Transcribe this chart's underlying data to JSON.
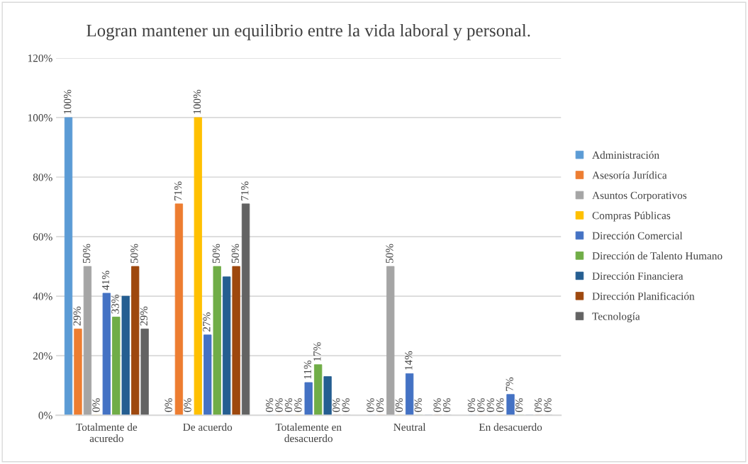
{
  "chart_data": {
    "type": "bar",
    "title": "Logran mantener un equilibrio entre la vida laboral y personal.",
    "categories": [
      "Totalmente de\nacuredo",
      "De acuerdo",
      "Totalemente en\ndesacuerdo",
      "Neutral",
      "En desacuerdo"
    ],
    "series": [
      {
        "name": "Administración",
        "color": "#5b9bd5",
        "values": [
          100,
          0,
          0,
          0,
          0
        ],
        "value_labels": [
          "100%",
          "0%",
          "0%",
          "0%",
          "0%"
        ]
      },
      {
        "name": "Asesoría Jurídica",
        "color": "#ed7d31",
        "values": [
          29,
          71,
          0,
          0,
          0
        ],
        "value_labels": [
          "29%",
          "71%",
          "0%",
          "0%",
          "0%"
        ]
      },
      {
        "name": "Asuntos Corporativos",
        "color": "#a5a5a5",
        "values": [
          50,
          0,
          0,
          50,
          0
        ],
        "value_labels": [
          "50%",
          "0%",
          "0%",
          "50%",
          "0%"
        ]
      },
      {
        "name": "Compras Públicas",
        "color": "#ffc000",
        "values": [
          0,
          100,
          0,
          0,
          0
        ],
        "value_labels": [
          "0%",
          "100%",
          "0%",
          "0%",
          "0%"
        ]
      },
      {
        "name": "Dirección Comercial",
        "color": "#4472c4",
        "values": [
          41,
          27,
          11,
          14,
          7
        ],
        "value_labels": [
          "41%",
          "27%",
          "11%",
          "14%",
          "7%"
        ]
      },
      {
        "name": "Dirección de Talento Humano",
        "color": "#70ad47",
        "values": [
          33,
          50,
          17,
          0,
          0
        ],
        "value_labels": [
          "33%",
          "50%",
          "17%",
          "0%",
          "0%"
        ]
      },
      {
        "name": "Dirección Financiera",
        "color": "#255e91",
        "values": [
          40,
          46.5,
          13,
          0,
          0
        ],
        "value_labels": [
          null,
          null,
          null,
          null,
          null
        ]
      },
      {
        "name": "Dirección Planificación",
        "color": "#9e480e",
        "values": [
          50,
          50,
          0,
          0,
          0
        ],
        "value_labels": [
          "50%",
          "50%",
          "0%",
          "0%",
          "0%"
        ]
      },
      {
        "name": "Tecnología",
        "color": "#636363",
        "values": [
          29,
          71,
          0,
          0,
          0
        ],
        "value_labels": [
          "29%",
          "71%",
          "0%",
          "0%",
          "0%"
        ]
      }
    ],
    "ylim": [
      0,
      120
    ],
    "yticks": [
      {
        "value": 0,
        "label": "0%"
      },
      {
        "value": 20,
        "label": "20%"
      },
      {
        "value": 40,
        "label": "40%"
      },
      {
        "value": 60,
        "label": "60%"
      },
      {
        "value": 80,
        "label": "80%"
      },
      {
        "value": 100,
        "label": "100%"
      },
      {
        "value": 120,
        "label": "120%"
      }
    ],
    "grid": "y",
    "legend": "right"
  }
}
